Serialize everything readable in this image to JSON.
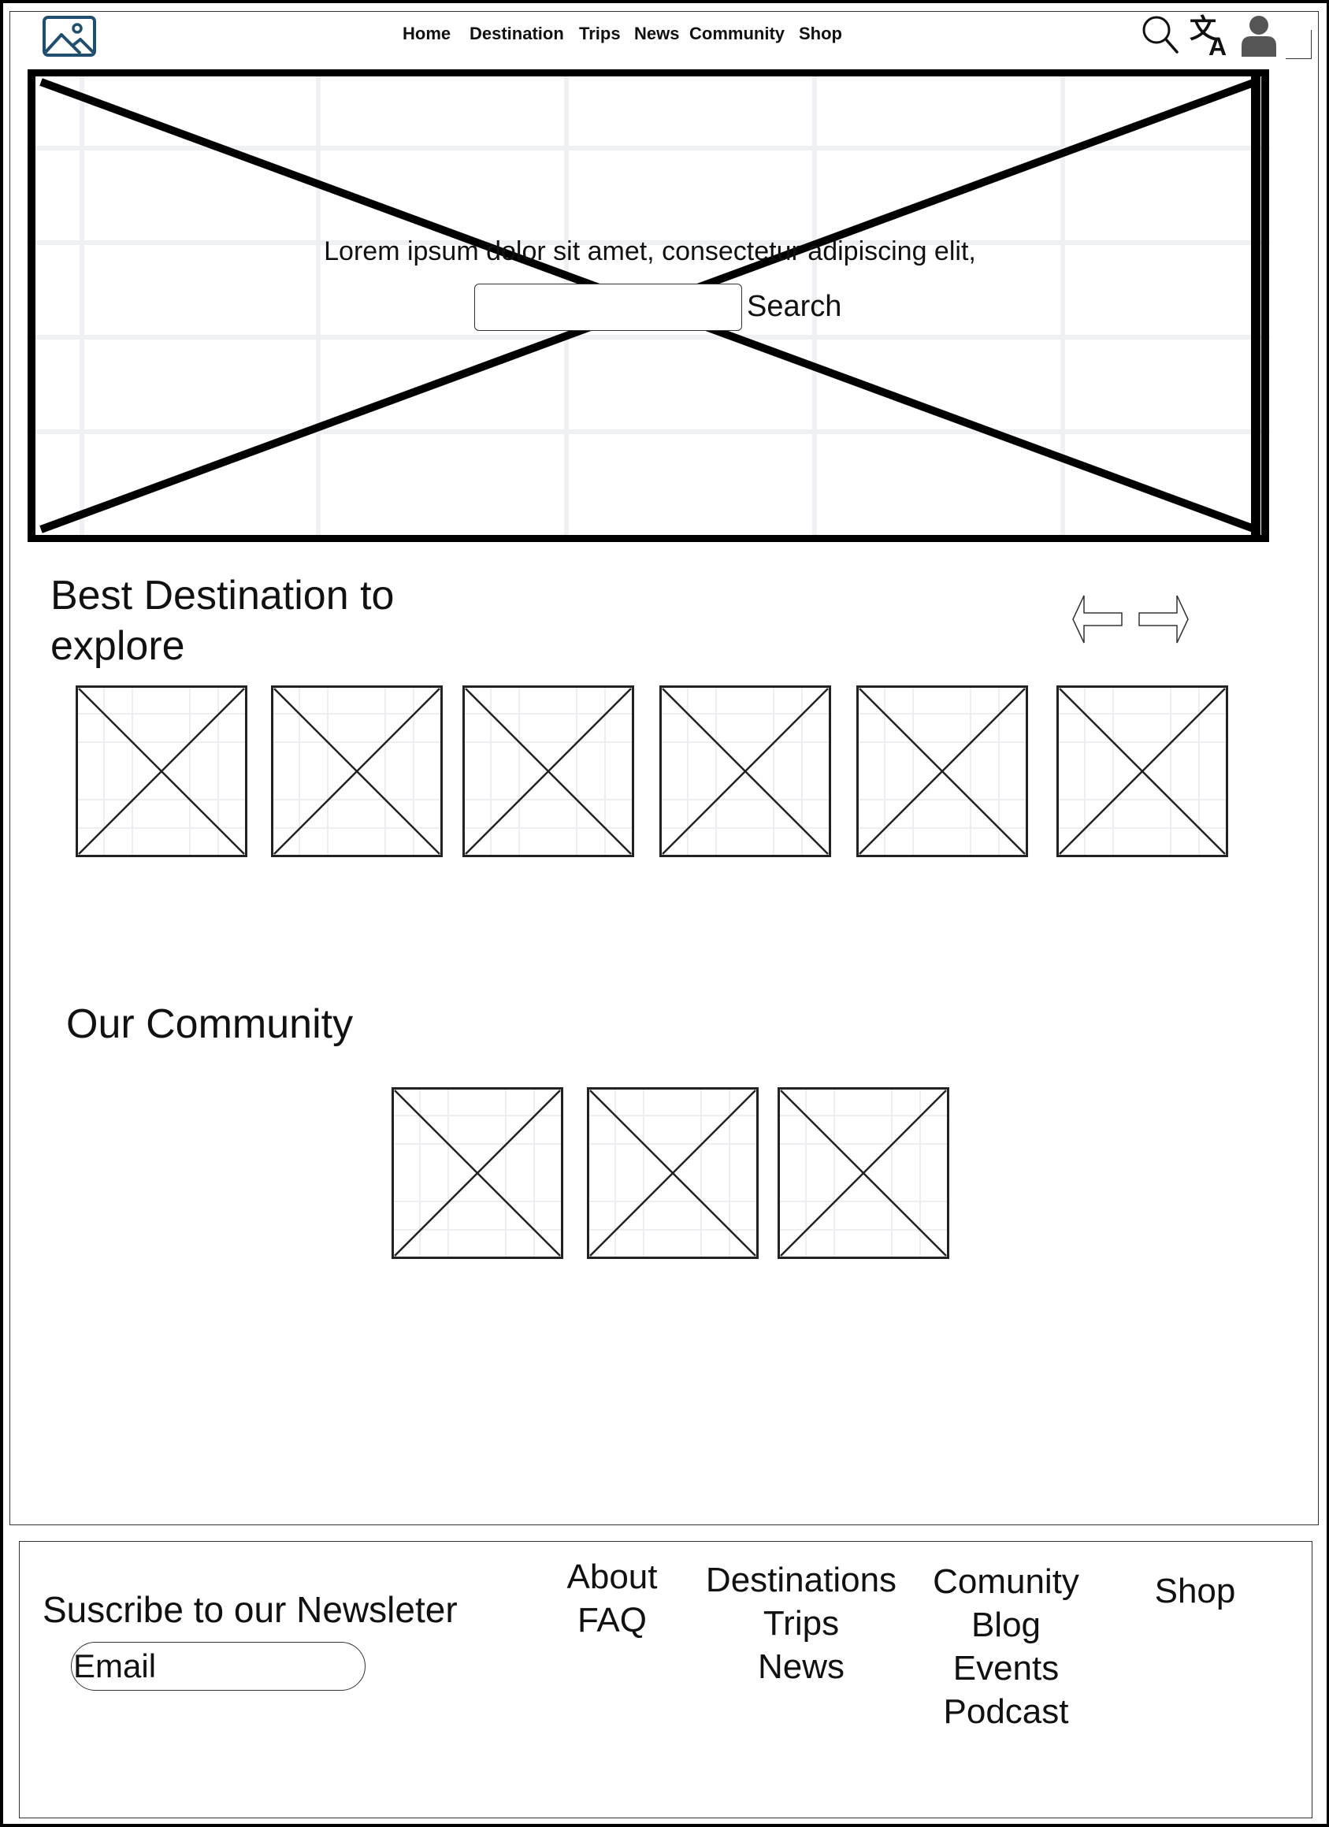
{
  "header": {
    "logo_icon": "image-icon",
    "nav": [
      "Home",
      "Destination",
      "Trips",
      "News",
      "Community",
      "Shop"
    ],
    "icons": [
      "search-icon",
      "translate-icon",
      "user-icon"
    ],
    "logo_color": "#1f4e6e"
  },
  "hero": {
    "image": "image-placeholder",
    "tagline": "Lorem ipsum dolor sit amet, consectetur adipiscing elit,",
    "search_value": "",
    "search_label": "Search"
  },
  "destinations": {
    "title": "Best Destination to explore",
    "prev_icon": "arrow-left-icon",
    "next_icon": "arrow-right-icon",
    "card_count": 6
  },
  "community": {
    "title": "Our Community",
    "card_count": 3
  },
  "footer": {
    "newsletter_title": "Suscribe to our Newsleter",
    "email_placeholder": "Email",
    "columns": [
      {
        "links": [
          "About",
          "FAQ"
        ]
      },
      {
        "links": [
          "Destinations",
          "Trips",
          "News"
        ]
      },
      {
        "links": [
          "Comunity",
          "Blog",
          "Events",
          "Podcast"
        ]
      },
      {
        "links": [
          "Shop"
        ]
      }
    ]
  }
}
